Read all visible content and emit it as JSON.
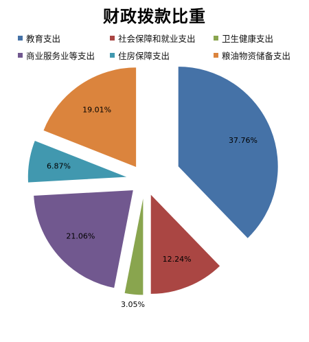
{
  "chart_data": {
    "type": "pie",
    "title": "财政拨款比重",
    "exploded": true,
    "legend_position": "top",
    "slices": [
      {
        "label": "教育支出",
        "value": 37.76,
        "value_label": "37.76%",
        "color": "#4572A7"
      },
      {
        "label": "社会保障和就业支出",
        "value": 12.24,
        "value_label": "12.24%",
        "color": "#AA4643"
      },
      {
        "label": "卫生健康支出",
        "value": 3.05,
        "value_label": "3.05%",
        "color": "#89A54E"
      },
      {
        "label": "商业服务业等支出",
        "value": 21.06,
        "value_label": "21.06%",
        "color": "#71588F"
      },
      {
        "label": "住房保障支出",
        "value": 6.87,
        "value_label": "6.87%",
        "color": "#4198AF"
      },
      {
        "label": "粮油物资储备支出",
        "value": 19.01,
        "value_label": "19.01%",
        "color": "#DB843D"
      }
    ]
  }
}
